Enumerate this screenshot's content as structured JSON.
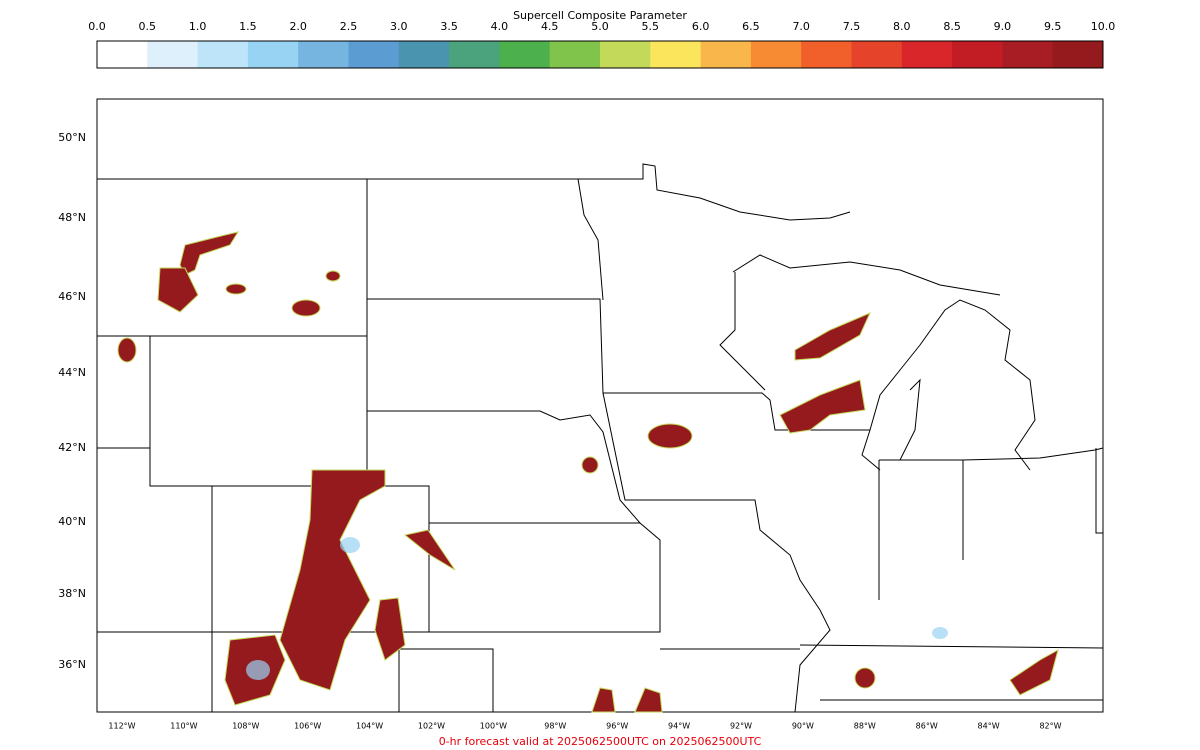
{
  "colorbar": {
    "title": "Supercell Composite Parameter",
    "ticks": [
      "0.0",
      "0.5",
      "1.0",
      "1.5",
      "2.0",
      "2.5",
      "3.0",
      "3.5",
      "4.0",
      "4.5",
      "5.0",
      "5.5",
      "6.0",
      "6.5",
      "7.0",
      "7.5",
      "8.0",
      "8.5",
      "9.0",
      "9.5",
      "10.0"
    ],
    "colors": [
      "#ffffff",
      "#ddf0fc",
      "#bde4f8",
      "#99d3f3",
      "#76b5e0",
      "#5b9dd3",
      "#4a94b0",
      "#4aa37c",
      "#4cb04c",
      "#80c44c",
      "#c3d95a",
      "#fbe55c",
      "#f9b64a",
      "#f68b33",
      "#f1602a",
      "#e5432a",
      "#d9262a",
      "#c21d24",
      "#a81c23",
      "#951a1d"
    ]
  },
  "latitude_labels": [
    "50°N",
    "48°N",
    "46°N",
    "44°N",
    "42°N",
    "40°N",
    "38°N",
    "36°N"
  ],
  "longitude_labels": [
    "112°W",
    "110°W",
    "108°W",
    "106°W",
    "104°W",
    "102°W",
    "100°W",
    "98°W",
    "96°W",
    "94°W",
    "92°W",
    "90°W",
    "88°W",
    "86°W",
    "84°W",
    "82°W"
  ],
  "footer": "0-hr forecast valid at 2025062500UTC on 2025062500UTC"
}
